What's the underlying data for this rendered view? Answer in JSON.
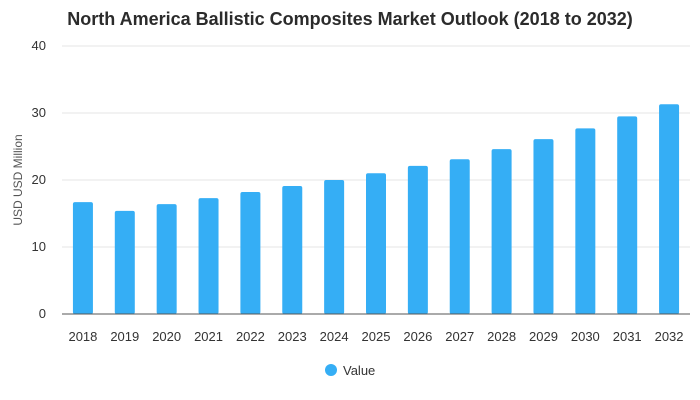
{
  "chart_data": {
    "type": "bar",
    "title": "North America Ballistic Composites Market Outlook (2018 to 2032)",
    "xlabel": "",
    "ylabel": "USD USD Million",
    "categories": [
      "2018",
      "2019",
      "2020",
      "2021",
      "2022",
      "2023",
      "2024",
      "2025",
      "2026",
      "2027",
      "2028",
      "2029",
      "2030",
      "2031",
      "2032"
    ],
    "series": [
      {
        "name": "Value",
        "values": [
          16.7,
          15.4,
          16.4,
          17.3,
          18.2,
          19.1,
          20.0,
          21.0,
          22.1,
          23.1,
          24.6,
          26.1,
          27.7,
          29.5,
          31.3
        ]
      }
    ],
    "ylim": [
      0,
      40
    ],
    "yticks": [
      "0",
      "10",
      "20",
      "30",
      "40"
    ],
    "grid": true,
    "legend": "bottom-center",
    "color": "#35aef5"
  }
}
